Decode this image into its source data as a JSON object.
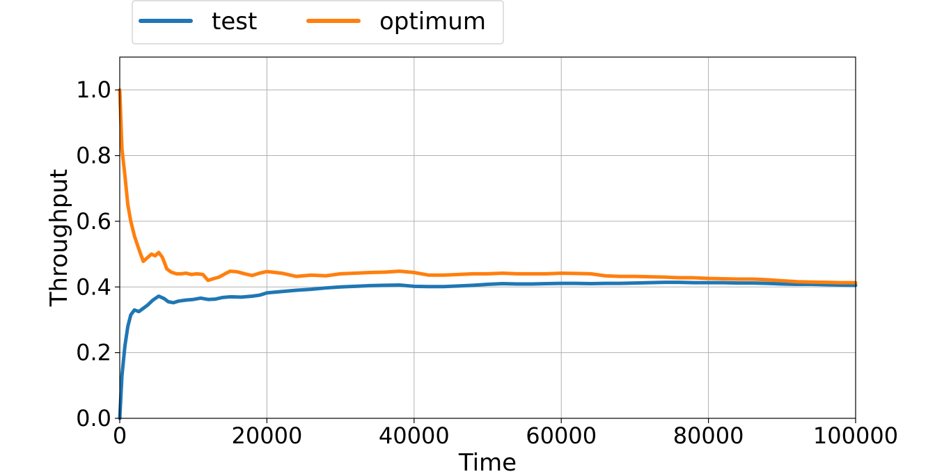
{
  "chart_data": {
    "type": "line",
    "title": "",
    "xlabel": "Time",
    "ylabel": "Throughput",
    "xlim": [
      0,
      100000
    ],
    "ylim": [
      0,
      1.1
    ],
    "xticks": [
      0,
      20000,
      40000,
      60000,
      80000,
      100000
    ],
    "xtick_labels": [
      "0",
      "20000",
      "40000",
      "60000",
      "80000",
      "100000"
    ],
    "yticks": [
      0.0,
      0.2,
      0.4,
      0.6,
      0.8,
      1.0
    ],
    "ytick_labels": [
      "0.0",
      "0.2",
      "0.4",
      "0.6",
      "0.8",
      "1.0"
    ],
    "grid": true,
    "legend_position": "top-left, above plot",
    "series": [
      {
        "name": "test",
        "color": "#1f77b4",
        "x": [
          0,
          300,
          700,
          1100,
          1500,
          2000,
          2600,
          3200,
          3800,
          4500,
          5300,
          6000,
          6600,
          7300,
          8000,
          9000,
          10000,
          11000,
          12000,
          13000,
          14000,
          15000,
          16500,
          18000,
          19000,
          20000,
          22000,
          24000,
          26000,
          28000,
          30000,
          32000,
          34000,
          36000,
          38000,
          40000,
          42000,
          44000,
          46000,
          48000,
          50000,
          52000,
          54000,
          56000,
          58000,
          60000,
          62000,
          64000,
          66000,
          68000,
          70000,
          72000,
          74000,
          76000,
          78000,
          80000,
          82000,
          84000,
          86000,
          88000,
          90000,
          92000,
          94000,
          96000,
          98000,
          100000
        ],
        "y": [
          0.0,
          0.13,
          0.22,
          0.28,
          0.315,
          0.33,
          0.325,
          0.335,
          0.345,
          0.36,
          0.372,
          0.365,
          0.355,
          0.352,
          0.357,
          0.36,
          0.362,
          0.366,
          0.362,
          0.363,
          0.368,
          0.37,
          0.369,
          0.372,
          0.375,
          0.382,
          0.386,
          0.39,
          0.393,
          0.397,
          0.4,
          0.402,
          0.404,
          0.405,
          0.406,
          0.402,
          0.401,
          0.401,
          0.403,
          0.405,
          0.408,
          0.41,
          0.409,
          0.409,
          0.41,
          0.411,
          0.411,
          0.41,
          0.411,
          0.411,
          0.412,
          0.413,
          0.414,
          0.414,
          0.413,
          0.413,
          0.413,
          0.412,
          0.412,
          0.411,
          0.409,
          0.408,
          0.408,
          0.407,
          0.406,
          0.405
        ]
      },
      {
        "name": "optimum",
        "color": "#ff7f0e",
        "x": [
          0,
          300,
          700,
          1100,
          1500,
          2000,
          2600,
          3200,
          3800,
          4300,
          4800,
          5300,
          5800,
          6400,
          7000,
          7700,
          8400,
          9000,
          9700,
          10500,
          11300,
          12000,
          12700,
          13500,
          14300,
          15000,
          16000,
          17000,
          18000,
          19000,
          20000,
          22000,
          24000,
          26000,
          28000,
          30000,
          32000,
          34000,
          36000,
          38000,
          40000,
          42000,
          44000,
          46000,
          48000,
          50000,
          52000,
          54000,
          56000,
          58000,
          60000,
          62000,
          64000,
          66000,
          68000,
          70000,
          72000,
          74000,
          76000,
          78000,
          80000,
          82000,
          84000,
          86000,
          88000,
          90000,
          92000,
          94000,
          96000,
          98000,
          100000
        ],
        "y": [
          1.0,
          0.82,
          0.74,
          0.65,
          0.6,
          0.555,
          0.515,
          0.478,
          0.49,
          0.5,
          0.495,
          0.505,
          0.49,
          0.455,
          0.445,
          0.44,
          0.44,
          0.442,
          0.438,
          0.44,
          0.438,
          0.42,
          0.425,
          0.43,
          0.44,
          0.448,
          0.446,
          0.44,
          0.435,
          0.442,
          0.447,
          0.442,
          0.432,
          0.436,
          0.434,
          0.44,
          0.442,
          0.444,
          0.445,
          0.448,
          0.444,
          0.436,
          0.436,
          0.438,
          0.44,
          0.44,
          0.442,
          0.44,
          0.44,
          0.44,
          0.442,
          0.441,
          0.44,
          0.434,
          0.432,
          0.432,
          0.431,
          0.43,
          0.428,
          0.428,
          0.426,
          0.425,
          0.424,
          0.424,
          0.422,
          0.419,
          0.416,
          0.415,
          0.414,
          0.413,
          0.413
        ]
      }
    ]
  }
}
